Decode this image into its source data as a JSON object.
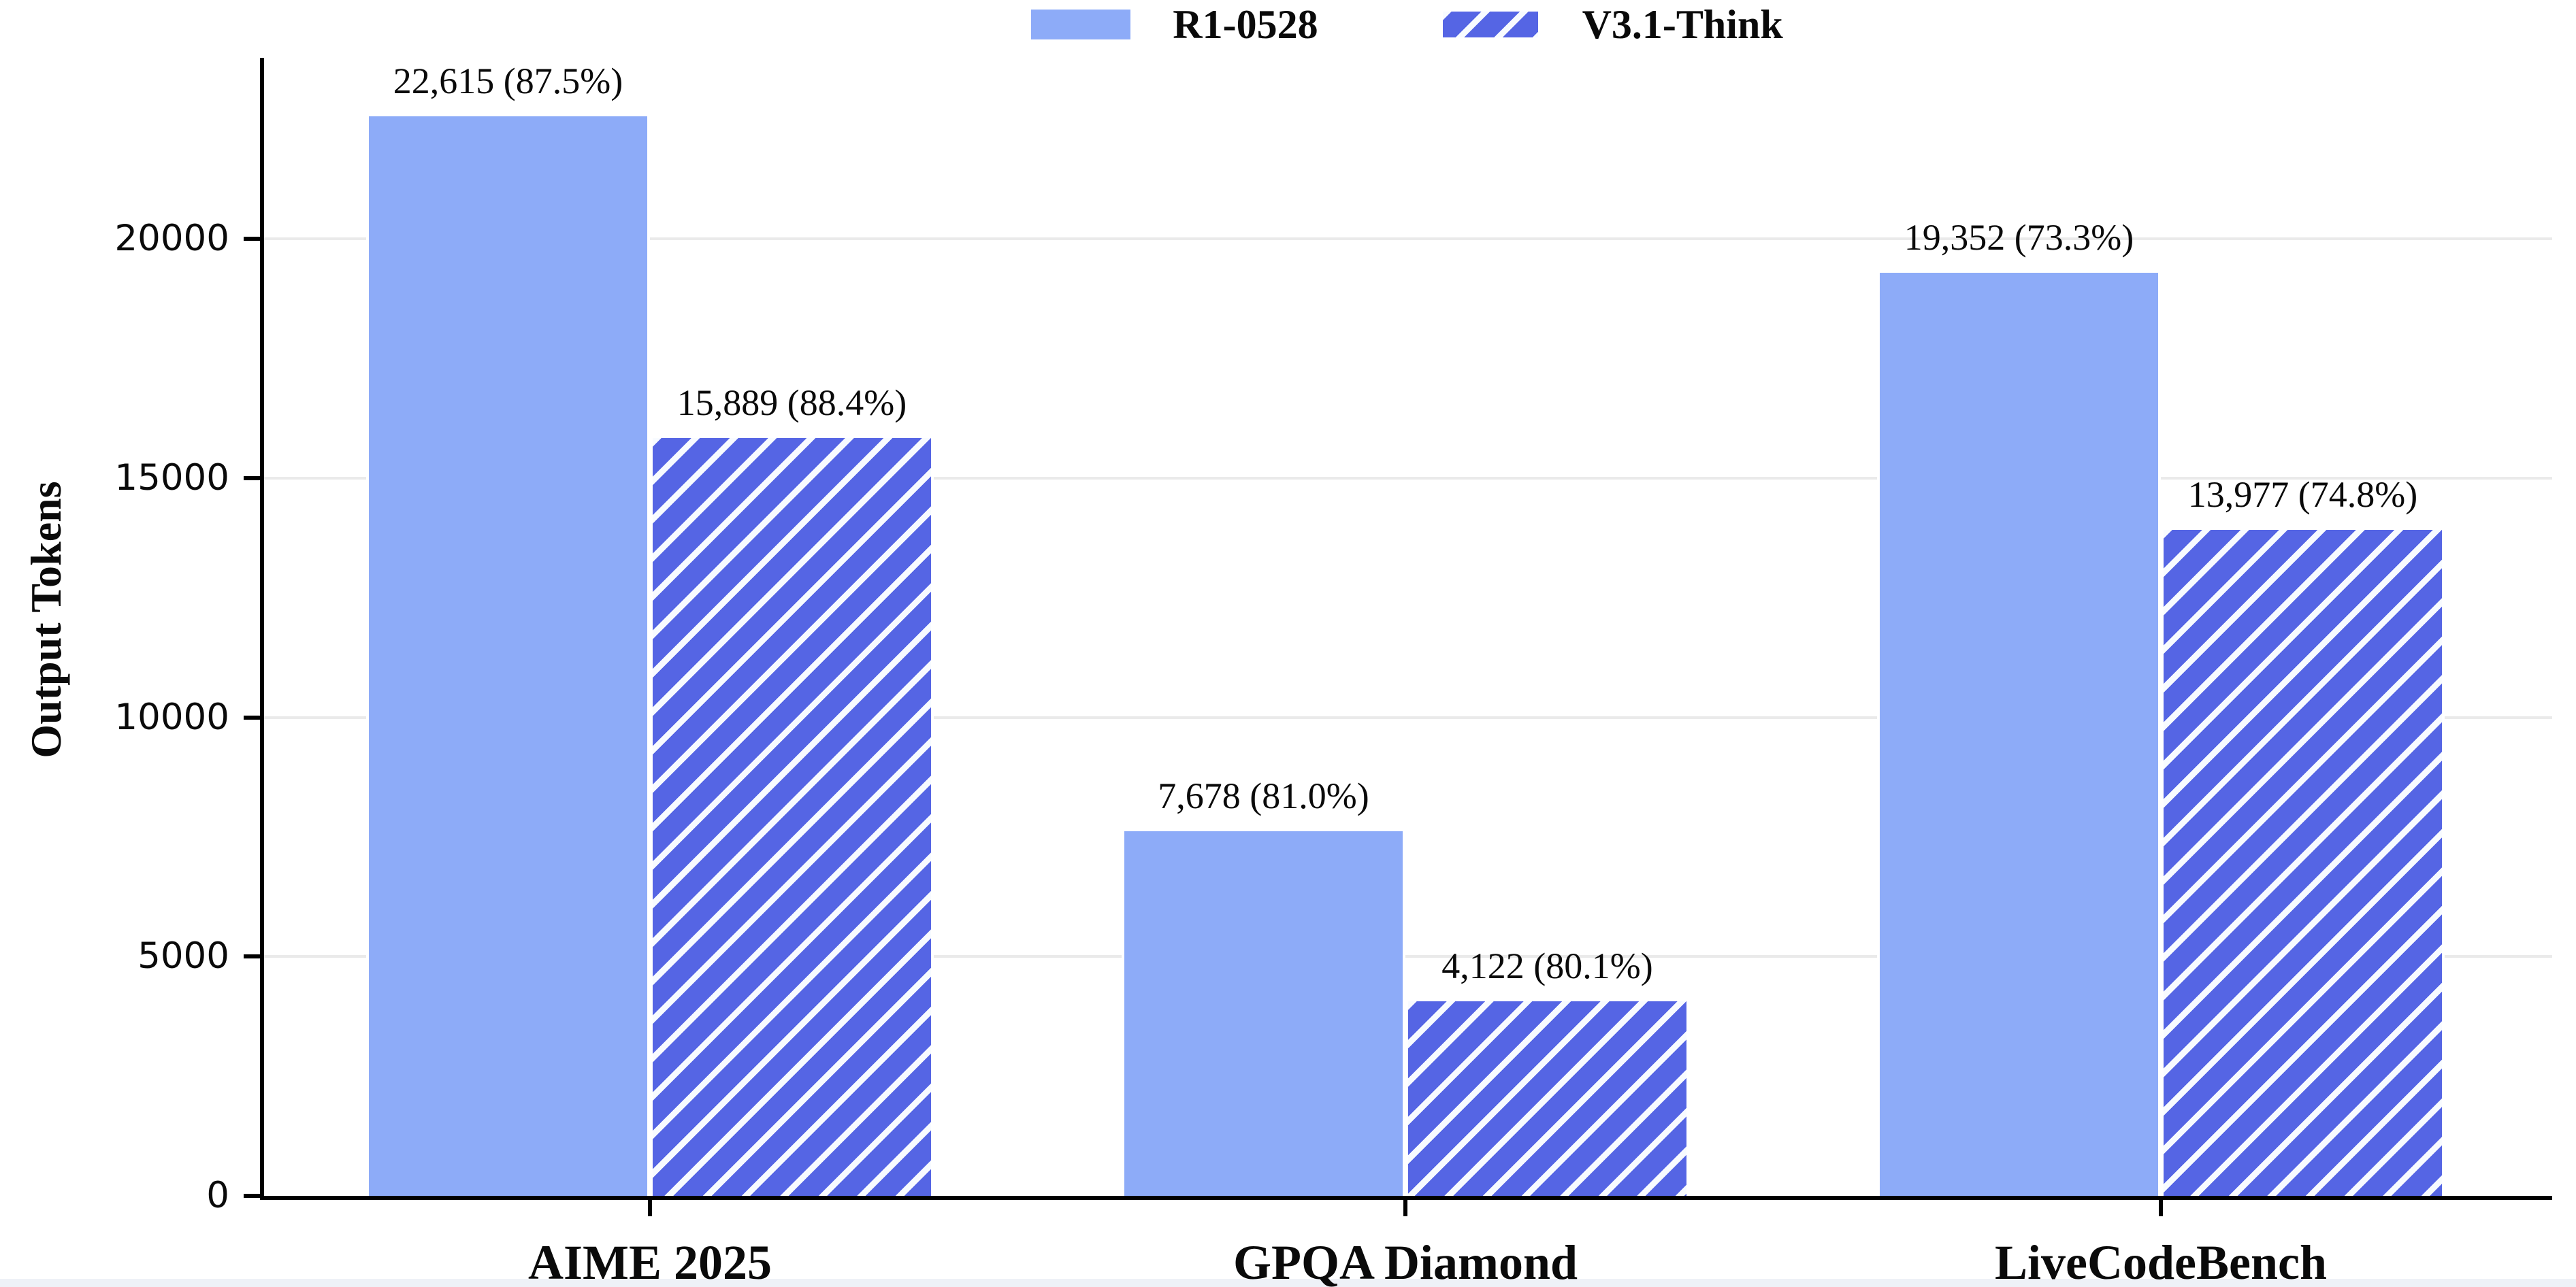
{
  "chart_data": {
    "type": "bar",
    "title": "",
    "ylabel": "Output Tokens",
    "xlabel": "",
    "categories": [
      "AIME 2025",
      "GPQA Diamond",
      "LiveCodeBench"
    ],
    "series": [
      {
        "name": "R1-0528",
        "style": "solid",
        "values": [
          22615,
          7678,
          19352
        ],
        "accuracy_pct": [
          87.5,
          81.0,
          73.3
        ],
        "labels": [
          "22,615 (87.5%)",
          "15,889 (88.4%)"
        ]
      },
      {
        "name": "V3.1-Think",
        "style": "hatched",
        "values": [
          15889,
          4122,
          13977
        ],
        "accuracy_pct": [
          88.4,
          80.1,
          74.8
        ],
        "labels": []
      }
    ],
    "bar_labels": {
      "series0": [
        "22,615 (87.5%)",
        "7,678 (81.0%)",
        "19,352 (73.3%)"
      ],
      "series1": [
        "15,889 (88.4%)",
        "4,122 (80.1%)",
        "13,977 (74.8%)"
      ]
    },
    "yticks": [
      0,
      5000,
      10000,
      15000,
      20000
    ],
    "ytick_labels": [
      "0",
      "5000",
      "10000",
      "15000",
      "20000"
    ],
    "ylim": [
      0,
      23800
    ],
    "grid": "horizontal",
    "legend_position": "top-center",
    "hatch_style": "forward-diagonal-white-stripes",
    "colors": {
      "solid": "#8dabf8",
      "hatch_bg": "#5565e4",
      "hatch_stripe": "#f8fbff",
      "grid": "#eaeaea",
      "axis": "#000000",
      "text": "#0a0a0a"
    }
  }
}
